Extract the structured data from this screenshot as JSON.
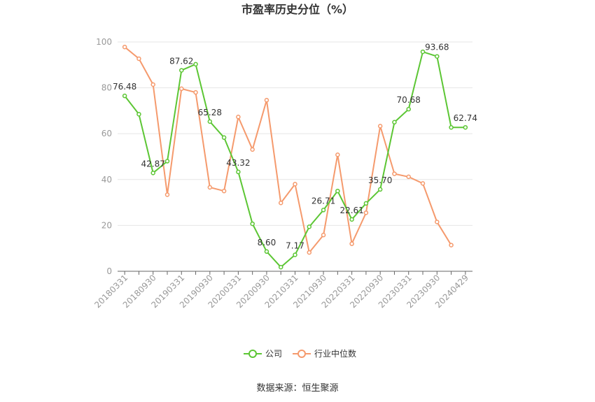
{
  "chart_data": {
    "type": "line",
    "title": "市盈率历史分位（%）",
    "source": "数据来源：恒生聚源",
    "ylim": [
      0,
      100
    ],
    "yticks": [
      0,
      20,
      40,
      60,
      80,
      100
    ],
    "x": [
      "20180331",
      "20180630",
      "20180930",
      "20181231",
      "20190331",
      "20190630",
      "20190930",
      "20191231",
      "20200331",
      "20200630",
      "20200930",
      "20201231",
      "20210331",
      "20210630",
      "20210930",
      "20211231",
      "20220331",
      "20220630",
      "20220930",
      "20221231",
      "20230331",
      "20230630",
      "20230930",
      "20231231",
      "20240429"
    ],
    "xtick_labels": [
      "20180331",
      "20180930",
      "20190331",
      "20190930",
      "20200331",
      "20200930",
      "20210331",
      "20210930",
      "20220331",
      "20220930",
      "20230331",
      "20230930",
      "20240429"
    ],
    "series": [
      {
        "name": "公司",
        "color": "#5cc634",
        "values": [
          76.48,
          68.5,
          42.87,
          48.0,
          87.62,
          90.3,
          65.28,
          58.3,
          43.32,
          20.7,
          8.6,
          1.8,
          7.17,
          19.4,
          26.71,
          35.0,
          22.61,
          29.6,
          35.7,
          65.0,
          70.68,
          95.7,
          93.68,
          62.74,
          62.74
        ],
        "labels": {
          "0": "76.48",
          "2": "42.87",
          "4": "87.62",
          "6": "65.28",
          "8": "43.32",
          "10": "8.60",
          "12": "7.17",
          "14": "26.71",
          "16": "22.61",
          "18": "35.70",
          "20": "70.68",
          "22": "93.68",
          "24": "62.74"
        }
      },
      {
        "name": "行业中位数",
        "color": "#f59a6d",
        "values": [
          97.8,
          92.7,
          81.4,
          33.4,
          79.6,
          78.0,
          36.6,
          35.0,
          67.3,
          53.1,
          74.6,
          29.8,
          38.0,
          8.2,
          15.8,
          50.8,
          12.0,
          25.5,
          63.3,
          42.5,
          41.2,
          38.3,
          21.5,
          11.4,
          null
        ]
      }
    ],
    "legend_position": "bottom-center",
    "grid": true
  }
}
